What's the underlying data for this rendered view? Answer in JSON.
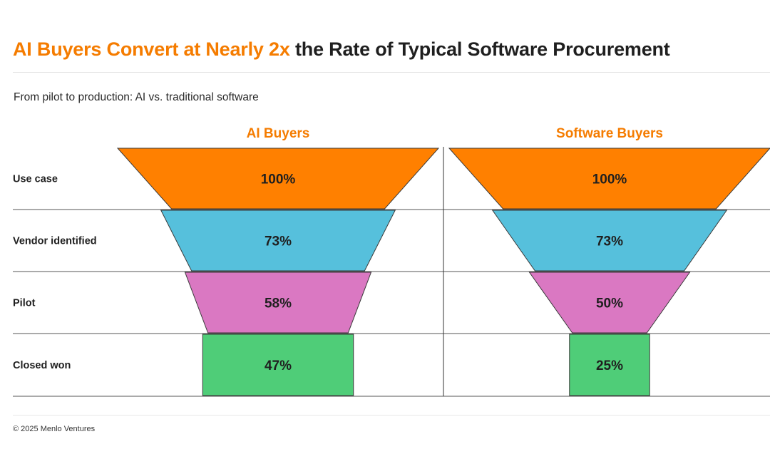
{
  "title": {
    "highlight": "AI Buyers Convert at Nearly 2x",
    "rest": "the Rate of Typical Software Procurement"
  },
  "subtitle": "From pilot to production: AI vs. traditional software",
  "footer": "© 2025 Menlo Ventures",
  "colors": {
    "accent": "#f57c00",
    "stages": [
      "#ff8000",
      "#56c0dc",
      "#da78c2",
      "#4fcd78"
    ],
    "text": "#1f1f1f"
  },
  "chart_data": {
    "type": "funnel",
    "title": "From pilot to production: AI vs. traditional software",
    "categories": [
      "Use case",
      "Vendor identified",
      "Pilot",
      "Closed won"
    ],
    "series": [
      {
        "name": "AI Buyers",
        "values": [
          100,
          73,
          58,
          47
        ],
        "labels": [
          "100%",
          "73%",
          "58%",
          "47%"
        ]
      },
      {
        "name": "Software Buyers",
        "values": [
          100,
          73,
          50,
          25
        ],
        "labels": [
          "100%",
          "73%",
          "50%",
          "25%"
        ]
      }
    ]
  }
}
